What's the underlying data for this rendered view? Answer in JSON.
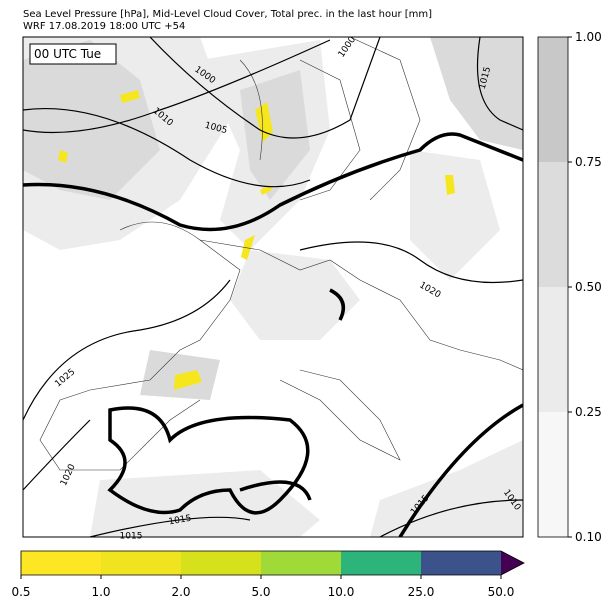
{
  "header": {
    "title": "Sea Level Pressure [hPa], Mid-Level Cloud Cover, Total prec. in the last hour [mm]",
    "subtitle": "WRF 17.08.2019 18:00 UTC +54"
  },
  "map": {
    "time_label": "00 UTC Tue",
    "contour_labels": [
      "1000",
      "1000",
      "1010",
      "1005",
      "1015",
      "1020",
      "1025",
      "1020",
      "1015",
      "1015",
      "1015",
      "1010"
    ]
  },
  "cloud_colorbar": {
    "ticks": [
      "0.10",
      "0.25",
      "0.50",
      "0.75",
      "1.00"
    ]
  },
  "precip_colorbar": {
    "ticks": [
      "0.5",
      "1.0",
      "2.0",
      "5.0",
      "10.0",
      "25.0",
      "50.0"
    ]
  }
}
